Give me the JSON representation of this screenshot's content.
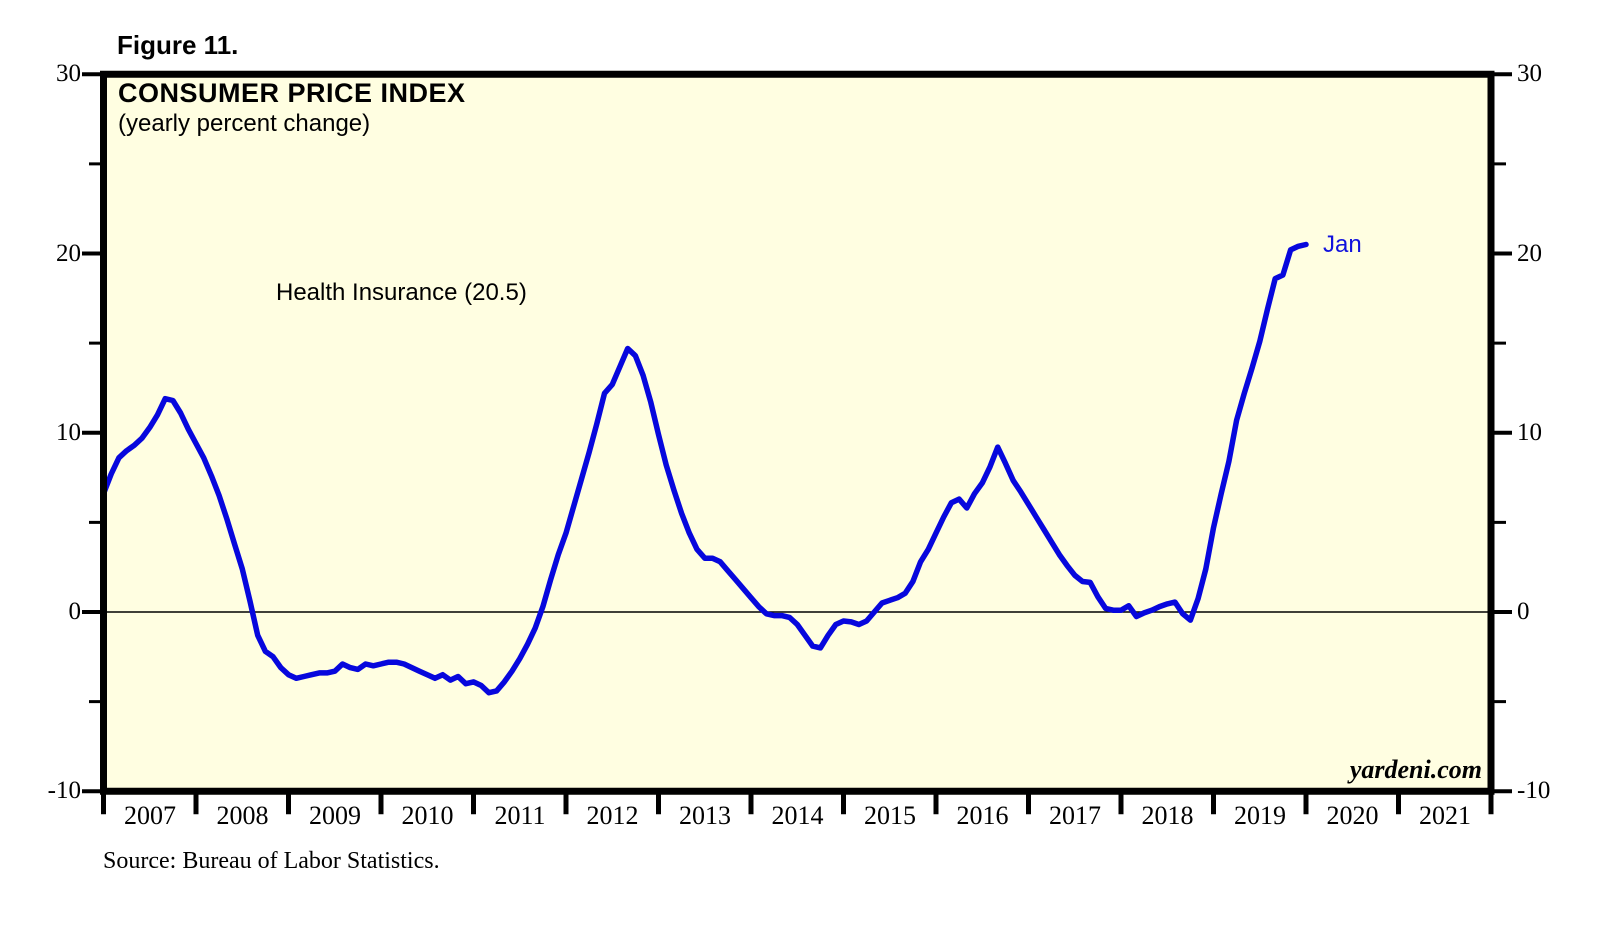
{
  "figure_label": "Figure 11.",
  "chart": {
    "title": "CONSUMER PRICE INDEX",
    "subtitle": "(yearly percent change)",
    "annotation": "Health Insurance (20.5)",
    "end_point_label": "Jan",
    "watermark": "yardeni.com",
    "source_note": "Source: Bureau of Labor Statistics."
  },
  "colors": {
    "plot_background": "#fffee1",
    "line": "#0707dd",
    "end_label_text": "#1212dd",
    "axis": "#000000",
    "zero_line": "#000000",
    "page_background": "#ffffff"
  },
  "chart_data": {
    "type": "line",
    "title": "CONSUMER PRICE INDEX",
    "subtitle": "(yearly percent change)",
    "series_label": "Health Insurance (20.5)",
    "latest_point": {
      "label": "Jan",
      "year": 2020,
      "value": 20.5
    },
    "y_axis": {
      "min": -10,
      "max": 30,
      "major_ticks": [
        30,
        20,
        10,
        0,
        -10
      ],
      "minor_ticks": [
        25,
        15,
        5,
        -5
      ],
      "sides": "both",
      "zero_line": true
    },
    "x_axis": {
      "years": [
        "2007",
        "2008",
        "2009",
        "2010",
        "2011",
        "2012",
        "2013",
        "2014",
        "2015",
        "2016",
        "2017",
        "2018",
        "2019",
        "2020",
        "2021"
      ],
      "axis_span_years": [
        2007,
        2022
      ],
      "data_start": "2007-01",
      "data_end": "2020-01"
    },
    "series": [
      {
        "name": "Health Insurance CPI (yearly percent change)",
        "frequency": "monthly",
        "monthly_values_by_year": {
          "2007": [
            6.6,
            7.7,
            8.6,
            9.0,
            9.3,
            9.7,
            10.3,
            11.0,
            11.9,
            11.8,
            11.1,
            10.2
          ],
          "2008": [
            9.4,
            8.6,
            7.6,
            6.5,
            5.2,
            3.8,
            2.4,
            0.6,
            -1.3,
            -2.2,
            -2.5,
            -3.1
          ],
          "2009": [
            -3.5,
            -3.7,
            -3.6,
            -3.5,
            -3.4,
            -3.4,
            -3.3,
            -2.9,
            -3.1,
            -3.2,
            -2.9,
            -3.0
          ],
          "2010": [
            -2.9,
            -2.8,
            -2.8,
            -2.9,
            -3.1,
            -3.3,
            -3.5,
            -3.7,
            -3.5,
            -3.8,
            -3.6,
            -4.0
          ],
          "2011": [
            -3.9,
            -4.1,
            -4.5,
            -4.4,
            -3.9,
            -3.3,
            -2.6,
            -1.8,
            -0.9,
            0.3,
            1.8,
            3.2
          ],
          "2012": [
            4.4,
            5.9,
            7.4,
            8.9,
            10.5,
            12.2,
            12.7,
            13.7,
            14.7,
            14.3,
            13.2,
            11.7
          ],
          "2013": [
            9.9,
            8.2,
            6.8,
            5.5,
            4.4,
            3.5,
            3.0,
            3.0,
            2.8,
            2.3,
            1.8,
            1.3
          ],
          "2014": [
            0.8,
            0.3,
            -0.1,
            -0.2,
            -0.2,
            -0.3,
            -0.7,
            -1.3,
            -1.9,
            -2.0,
            -1.3,
            -0.7
          ],
          "2015": [
            -0.5,
            -0.55,
            -0.7,
            -0.5,
            0.0,
            0.5,
            0.65,
            0.8,
            1.05,
            1.7,
            2.8,
            3.5
          ],
          "2016": [
            4.4,
            5.3,
            6.1,
            6.3,
            5.8,
            6.6,
            7.2,
            8.1,
            9.2,
            8.3,
            7.35,
            6.7
          ],
          "2017": [
            6.0,
            5.3,
            4.6,
            3.9,
            3.2,
            2.6,
            2.05,
            1.7,
            1.65,
            0.85,
            0.2,
            0.1
          ],
          "2018": [
            0.1,
            0.35,
            -0.25,
            -0.05,
            0.1,
            0.3,
            0.45,
            0.55,
            -0.1,
            -0.45,
            0.75,
            2.4
          ],
          "2019": [
            4.7,
            6.6,
            8.4,
            10.7,
            12.2,
            13.6,
            15.1,
            16.9,
            18.6,
            18.8,
            20.2,
            20.4
          ],
          "2020": [
            20.5
          ]
        }
      }
    ]
  }
}
